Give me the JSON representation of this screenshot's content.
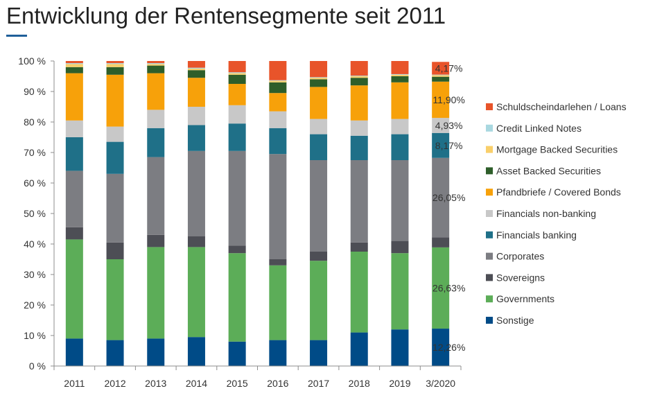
{
  "title": "Entwicklung der Rentensegmente seit 2011",
  "chart_data": {
    "type": "bar",
    "stacked": true,
    "title": "Entwicklung der Rentensegmente seit 2011",
    "xlabel": "",
    "ylabel": "",
    "ylim": [
      0,
      100
    ],
    "y_ticks": [
      "0 %",
      "10 %",
      "20 %",
      "30 %",
      "40 %",
      "50 %",
      "60 %",
      "70 %",
      "80 %",
      "90 %",
      "100 %"
    ],
    "grid": false,
    "legend_position": "right",
    "categories": [
      "2011",
      "2012",
      "2013",
      "2014",
      "2015",
      "2016",
      "2017",
      "2018",
      "2019",
      "3/2020"
    ],
    "series": [
      {
        "name": "Sonstige",
        "color": "#004b87",
        "values": [
          9.0,
          8.5,
          9.0,
          9.5,
          8.0,
          8.5,
          8.5,
          11.0,
          12.0,
          12.26
        ]
      },
      {
        "name": "Governments",
        "color": "#5cad58",
        "values": [
          32.5,
          26.5,
          30.0,
          29.5,
          29.0,
          24.5,
          26.0,
          26.5,
          25.0,
          26.63
        ]
      },
      {
        "name": "Sovereigns",
        "color": "#4d4e55",
        "values": [
          4.0,
          5.5,
          4.0,
          3.5,
          2.5,
          2.0,
          3.0,
          3.0,
          4.0,
          3.3
        ]
      },
      {
        "name": "Corporates",
        "color": "#7c7d82",
        "values": [
          18.5,
          22.5,
          25.5,
          28.0,
          31.0,
          34.5,
          30.0,
          27.0,
          26.5,
          26.05
        ]
      },
      {
        "name": "Financials banking",
        "color": "#1f7088",
        "values": [
          11.0,
          10.5,
          9.5,
          8.5,
          9.0,
          8.5,
          8.5,
          8.0,
          8.5,
          8.17
        ]
      },
      {
        "name": "Financials non-banking",
        "color": "#c8c8c8",
        "values": [
          5.5,
          5.0,
          6.0,
          6.0,
          6.0,
          5.5,
          5.0,
          5.0,
          5.0,
          4.93
        ]
      },
      {
        "name": "Pfandbriefe / Covered Bonds",
        "color": "#f7a10a",
        "values": [
          15.5,
          17.0,
          12.0,
          9.5,
          7.0,
          6.0,
          10.5,
          11.5,
          12.0,
          11.9
        ]
      },
      {
        "name": "Asset Backed Securities",
        "color": "#2e5e2a",
        "values": [
          2.0,
          2.5,
          2.5,
          2.5,
          3.0,
          3.5,
          2.5,
          2.5,
          2.0,
          1.6
        ]
      },
      {
        "name": "Mortgage Backed Securities",
        "color": "#f9cf6a",
        "values": [
          1.0,
          1.0,
          0.5,
          0.5,
          0.5,
          0.5,
          0.5,
          0.5,
          0.5,
          0.5
        ]
      },
      {
        "name": "Credit Linked Notes",
        "color": "#a9d8e0",
        "values": [
          0.3,
          0.3,
          0.3,
          0.3,
          0.3,
          0.2,
          0.2,
          0.2,
          0.2,
          0.2
        ]
      },
      {
        "name": "Schuldscheindarlehen / Loans",
        "color": "#e8542a",
        "values": [
          0.7,
          0.7,
          0.7,
          2.2,
          3.7,
          6.3,
          5.3,
          4.8,
          4.3,
          4.17
        ]
      }
    ],
    "data_labels": [
      {
        "category": "3/2020",
        "series": "Sonstige",
        "text": "12,26%"
      },
      {
        "category": "3/2020",
        "series": "Governments",
        "text": "26,63%"
      },
      {
        "category": "3/2020",
        "series": "Corporates",
        "text": "26,05%"
      },
      {
        "category": "3/2020",
        "series": "Financials banking",
        "text": "8,17%"
      },
      {
        "category": "3/2020",
        "series": "Financials non-banking",
        "text": "4,93%"
      },
      {
        "category": "3/2020",
        "series": "Pfandbriefe / Covered Bonds",
        "text": "11,90%"
      },
      {
        "category": "3/2020",
        "series": "Schuldscheindarlehen / Loans",
        "text": "4,17%"
      }
    ]
  }
}
